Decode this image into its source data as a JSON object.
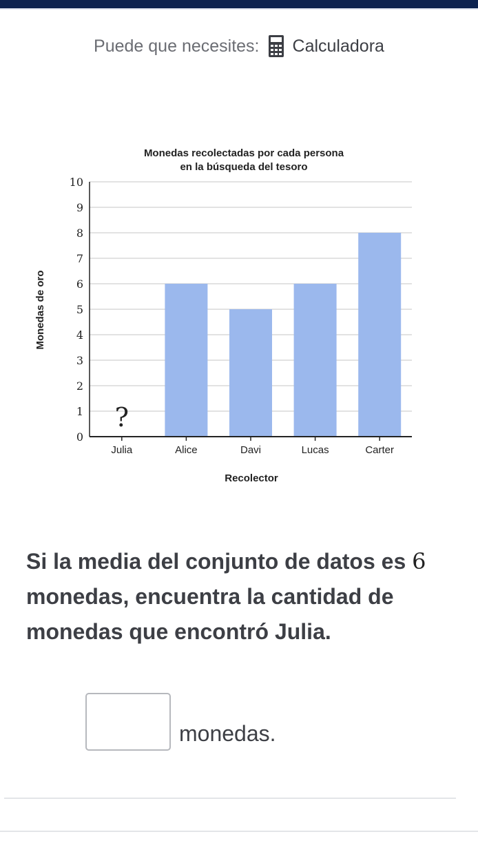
{
  "tools": {
    "prefix": "Puede que necesites:",
    "calculator_label": "Calculadora",
    "icon": "calculator-icon"
  },
  "chart_data": {
    "type": "bar",
    "title": [
      "Monedas recolectadas por cada persona",
      "en la búsqueda del tesoro"
    ],
    "xlabel": "Recolector",
    "ylabel": "Monedas de oro",
    "categories": [
      "Julia",
      "Alice",
      "Davi",
      "Lucas",
      "Carter"
    ],
    "values": [
      null,
      6,
      5,
      6,
      8
    ],
    "unknown_marker": "?",
    "ylim": [
      0,
      10
    ],
    "yticks": [
      0,
      1,
      2,
      3,
      4,
      5,
      6,
      7,
      8,
      9,
      10
    ],
    "grid": true,
    "bar_color": "#9bb8ed"
  },
  "question": {
    "part1": "Si la media del conjunto de datos es",
    "number": "6",
    "part2": "monedas, encuentra la cantidad de monedas que encontró Julia."
  },
  "answer": {
    "value": "",
    "unit": "monedas."
  },
  "colors": {
    "topbar": "#0c2350",
    "text": "#3d3f45"
  }
}
